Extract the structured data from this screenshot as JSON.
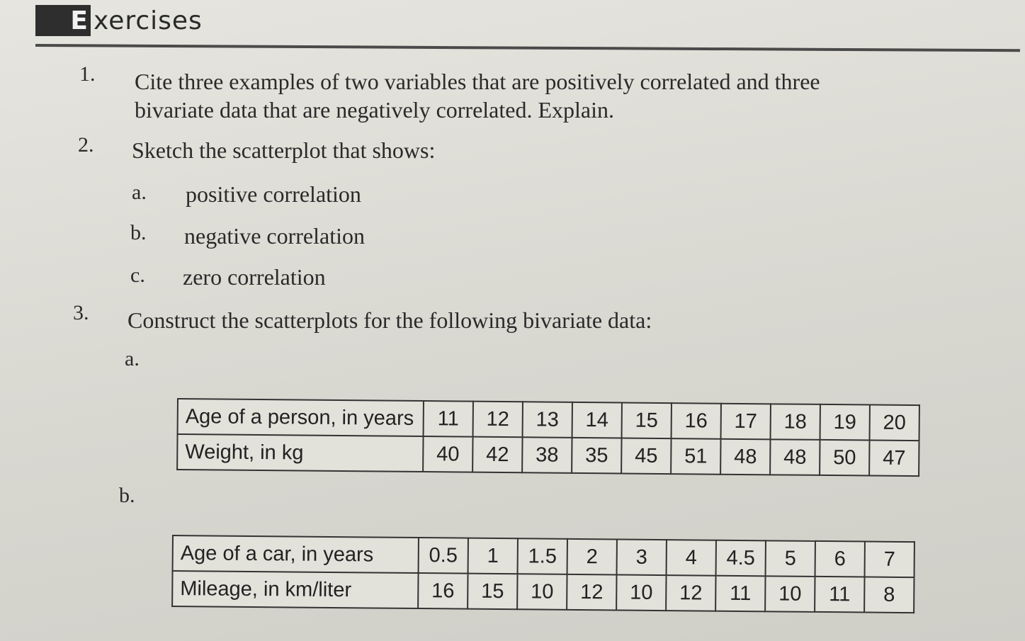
{
  "header": {
    "initial": "E",
    "rest": "xercises"
  },
  "questions": [
    {
      "number": "1.",
      "lines": [
        "Cite three examples of two variables that are positively correlated and three",
        "bivariate data that are negatively correlated.  Explain."
      ]
    },
    {
      "number": "2.",
      "text": "Sketch the scatterplot that shows:",
      "items": [
        {
          "letter": "a.",
          "text": "positive correlation"
        },
        {
          "letter": "b.",
          "text": "negative correlation"
        },
        {
          "letter": "c.",
          "text": "zero correlation"
        }
      ]
    },
    {
      "number": "3.",
      "text": "Construct the scatterplots for the following bivariate data:",
      "parts": [
        {
          "letter": "a.",
          "rows": [
            {
              "label": "Age of a person, in years",
              "values": [
                "11",
                "12",
                "13",
                "14",
                "15",
                "16",
                "17",
                "18",
                "19",
                "20"
              ]
            },
            {
              "label": "Weight, in kg",
              "values": [
                "40",
                "42",
                "38",
                "35",
                "45",
                "51",
                "48",
                "48",
                "50",
                "47"
              ]
            }
          ]
        },
        {
          "letter": "b.",
          "rows": [
            {
              "label": "Age of a car, in years",
              "values": [
                "0.5",
                "1",
                "1.5",
                "2",
                "3",
                "4",
                "4.5",
                "5",
                "6",
                "7"
              ]
            },
            {
              "label": "Mileage, in km/liter",
              "values": [
                "16",
                "15",
                "10",
                "12",
                "10",
                "12",
                "11",
                "10",
                "11",
                "8"
              ]
            }
          ]
        }
      ]
    }
  ]
}
